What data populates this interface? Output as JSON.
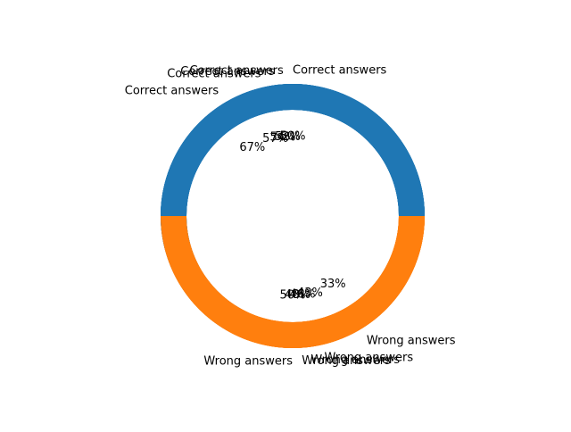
{
  "chart_data": {
    "type": "pie",
    "style": "donut",
    "legend": "none",
    "layers": [
      {
        "slices": [
          {
            "label": "Correct answers",
            "value": 67,
            "pct_label": "67%",
            "color": "#1f77b4"
          },
          {
            "label": "Wrong answers",
            "value": 33,
            "pct_label": "33%",
            "color": "#ff7f0e"
          }
        ]
      },
      {
        "slices": [
          {
            "label": "Correct answers",
            "value": 57,
            "pct_label": "57%",
            "color": "#1f77b4"
          },
          {
            "label": "Wrong answers",
            "value": 43,
            "pct_label": "43%",
            "color": "#ff7f0e"
          }
        ]
      },
      {
        "slices": [
          {
            "label": "Correct answers",
            "value": 52,
            "pct_label": "52%",
            "color": "#1f77b4"
          },
          {
            "label": "Wrong answers",
            "value": 48,
            "pct_label": "48%",
            "color": "#ff7f0e"
          }
        ]
      },
      {
        "slices": [
          {
            "label": "Correct answers",
            "value": 54,
            "pct_label": "54%",
            "color": "#1f77b4"
          },
          {
            "label": "Wrong answers",
            "value": 46,
            "pct_label": "46%",
            "color": "#ff7f0e"
          }
        ]
      },
      {
        "slices": [
          {
            "label": "Correct answers",
            "value": 50,
            "pct_label": "50%",
            "color": "#1f77b4"
          },
          {
            "label": "Wrong answers",
            "value": 50,
            "pct_label": "50%",
            "color": "#ff7f0e"
          }
        ]
      }
    ]
  }
}
